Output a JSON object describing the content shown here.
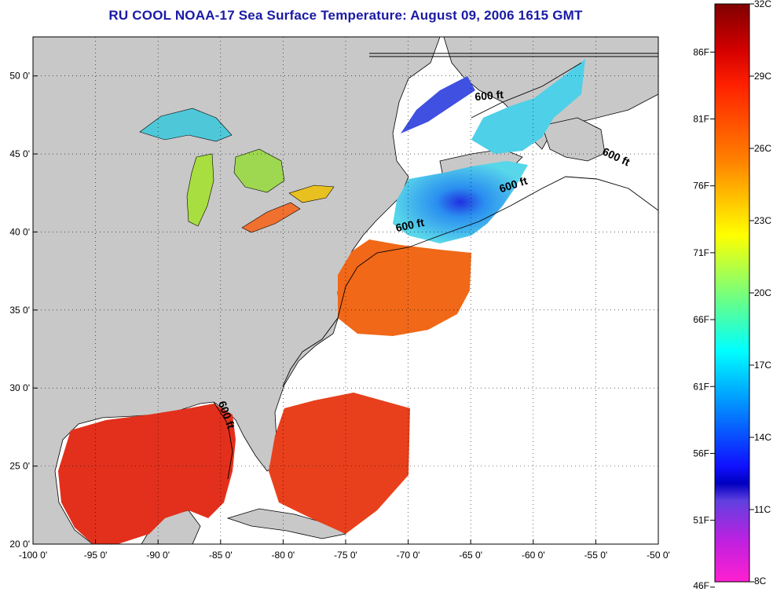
{
  "title": "RU COOL  NOAA-17  Sea Surface Temperature:  August 09, 2006 1615 GMT",
  "map": {
    "lon_range": [
      -100,
      -50
    ],
    "lat_range": [
      20,
      52.5
    ],
    "lon_ticks": [
      {
        "value": -100,
        "label": "-100 0'"
      },
      {
        "value": -95,
        "label": "-95 0'"
      },
      {
        "value": -90,
        "label": "-90 0'"
      },
      {
        "value": -85,
        "label": "-85 0'"
      },
      {
        "value": -80,
        "label": "-80 0'"
      },
      {
        "value": -75,
        "label": "-75 0'"
      },
      {
        "value": -70,
        "label": "-70 0'"
      },
      {
        "value": -65,
        "label": "-65 0'"
      },
      {
        "value": -60,
        "label": "-60 0'"
      },
      {
        "value": -55,
        "label": "-55 0'"
      },
      {
        "value": -50,
        "label": "-50 0'"
      }
    ],
    "lat_ticks": [
      {
        "value": 20,
        "label": "20 0'"
      },
      {
        "value": 25,
        "label": "25 0'"
      },
      {
        "value": 30,
        "label": "30 0'"
      },
      {
        "value": 35,
        "label": "35 0'"
      },
      {
        "value": 40,
        "label": "40 0'"
      },
      {
        "value": 45,
        "label": "45 0'"
      },
      {
        "value": 50,
        "label": "50 0'"
      }
    ],
    "contour_labels": [
      {
        "text": "600 ft",
        "lon": -63.5,
        "lat": 48.5,
        "rotate": -5
      },
      {
        "text": "600 ft",
        "lon": -53.5,
        "lat": 44.6,
        "rotate": 25
      },
      {
        "text": "600 ft",
        "lon": -61.5,
        "lat": 42.8,
        "rotate": -18
      },
      {
        "text": "600 ft",
        "lon": -69.8,
        "lat": 40.2,
        "rotate": -12
      },
      {
        "text": "600 ft",
        "lon": -84.8,
        "lat": 28.2,
        "rotate": 70
      }
    ],
    "colors": {
      "land": "#c8c8c8",
      "ocean_nodata": "#ffffff",
      "gulf": "#e2301c",
      "mid_atlantic": "#f06818",
      "gulf_maine": "#3fb6ee",
      "lakes": "#5ad2b4"
    }
  },
  "colorbar": {
    "range_c": [
      8,
      32
    ],
    "celsius_ticks": [
      {
        "value": 32,
        "label": "32C"
      },
      {
        "value": 29,
        "label": "29C"
      },
      {
        "value": 26,
        "label": "26C"
      },
      {
        "value": 23,
        "label": "23C"
      },
      {
        "value": 20,
        "label": "20C"
      },
      {
        "value": 17,
        "label": "17C"
      },
      {
        "value": 14,
        "label": "14C"
      },
      {
        "value": 11,
        "label": "11C"
      },
      {
        "value": 8,
        "label": "8C"
      }
    ],
    "fahrenheit_ticks": [
      {
        "value": 86,
        "label": "86F"
      },
      {
        "value": 81,
        "label": "81F"
      },
      {
        "value": 76,
        "label": "76F"
      },
      {
        "value": 71,
        "label": "71F"
      },
      {
        "value": 66,
        "label": "66F"
      },
      {
        "value": 61,
        "label": "61F"
      },
      {
        "value": 56,
        "label": "56F"
      },
      {
        "value": 51,
        "label": "51F"
      },
      {
        "value": 46,
        "label": "46F"
      }
    ]
  }
}
